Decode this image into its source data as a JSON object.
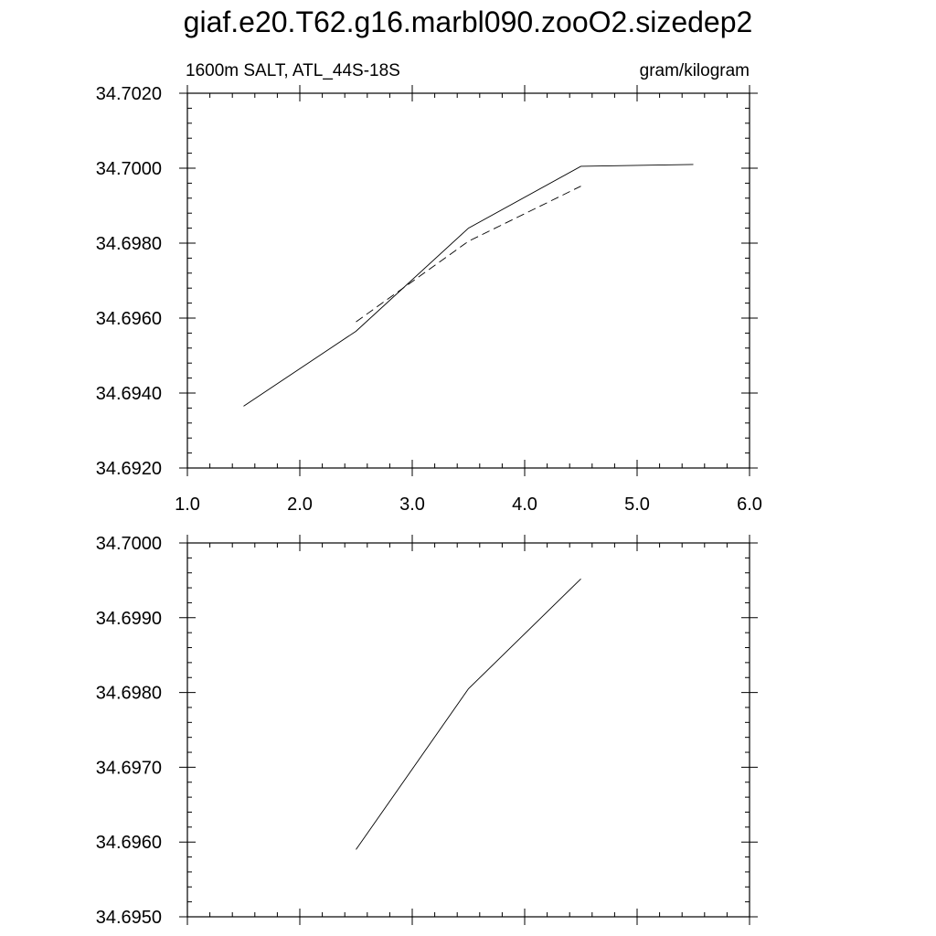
{
  "title": "giaf.e20.T62.g16.marbl090.zooO2.sizedep2",
  "chart_data": [
    {
      "type": "line",
      "left_label": "1600m SALT, ATL_44S-18S",
      "right_label": "gram/kilogram",
      "xlim": [
        1.0,
        6.0
      ],
      "ylim": [
        34.692,
        34.702
      ],
      "x_ticks": [
        "1.0",
        "2.0",
        "3.0",
        "4.0",
        "5.0",
        "6.0"
      ],
      "y_ticks": [
        "34.6920",
        "34.6940",
        "34.6960",
        "34.6980",
        "34.7000",
        "34.7020"
      ],
      "series": [
        {
          "style": "solid",
          "x": [
            1.5,
            2.5,
            3.5,
            4.5,
            5.5
          ],
          "y": [
            34.69365,
            34.69565,
            34.6984,
            34.70005,
            34.7001
          ]
        },
        {
          "style": "dashed",
          "x": [
            2.5,
            3.5,
            4.5
          ],
          "y": [
            34.6959,
            34.69805,
            34.69952
          ]
        }
      ]
    },
    {
      "type": "line",
      "xlim": [
        1.0,
        6.0
      ],
      "ylim": [
        34.695,
        34.7
      ],
      "x_ticks": [],
      "y_ticks": [
        "34.6950",
        "34.6960",
        "34.6970",
        "34.6980",
        "34.6990",
        "34.7000"
      ],
      "series": [
        {
          "style": "solid",
          "x": [
            2.5,
            3.5,
            4.5
          ],
          "y": [
            34.6959,
            34.69805,
            34.69952
          ]
        }
      ]
    }
  ]
}
